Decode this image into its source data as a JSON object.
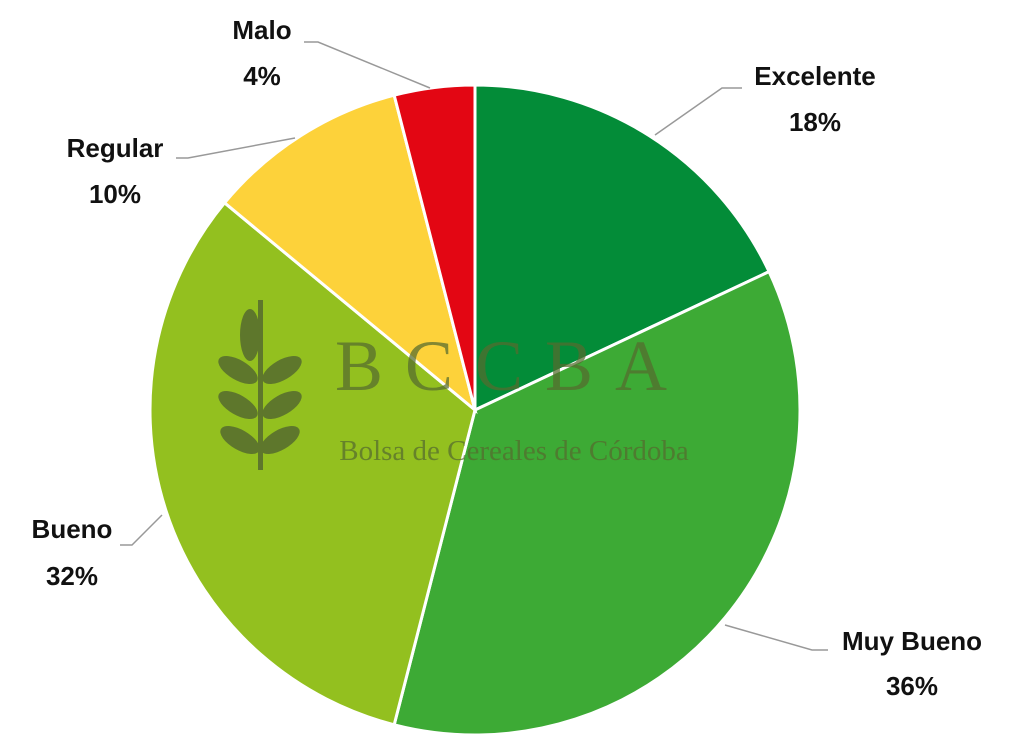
{
  "chart_data": {
    "type": "pie",
    "categories": [
      "Excelente",
      "Muy Bueno",
      "Bueno",
      "Regular",
      "Malo"
    ],
    "values": [
      18,
      36,
      32,
      10,
      4
    ],
    "value_labels": [
      "18%",
      "36%",
      "32%",
      "10%",
      "4%"
    ],
    "colors": [
      "#038C38",
      "#3DAA35",
      "#93C01F",
      "#FDD23A",
      "#E30613"
    ],
    "watermark": {
      "title": "BCCBA",
      "subtitle": "Bolsa de Cereales de Córdoba"
    }
  }
}
